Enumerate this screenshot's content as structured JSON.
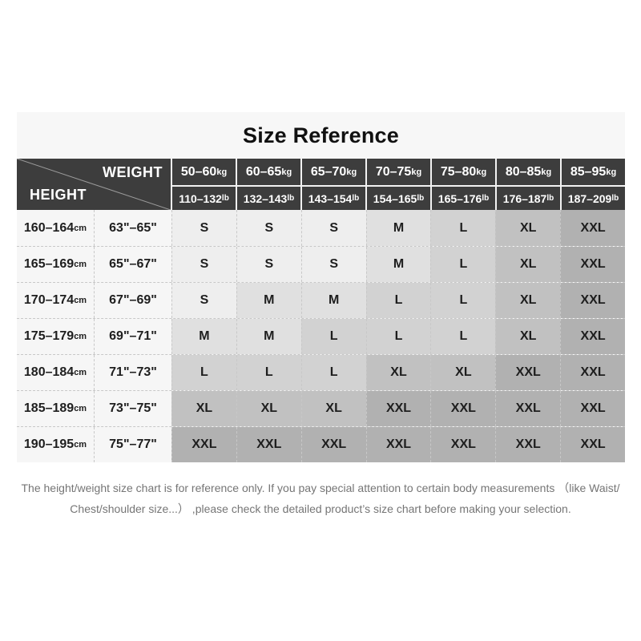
{
  "title": "Size Reference",
  "table": {
    "corner": {
      "weight_label": "WEIGHT",
      "height_label": "HEIGHT"
    },
    "units": {
      "kg": "kg",
      "lb": "lb",
      "cm": "cm"
    },
    "weight_columns": [
      {
        "kg": "50–60",
        "lb": "110–132"
      },
      {
        "kg": "60–65",
        "lb": "132–143"
      },
      {
        "kg": "65–70",
        "lb": "143–154"
      },
      {
        "kg": "70–75",
        "lb": "154–165"
      },
      {
        "kg": "75–80",
        "lb": "165–176"
      },
      {
        "kg": "80–85",
        "lb": "176–187"
      },
      {
        "kg": "85–95",
        "lb": "187–209"
      }
    ],
    "rows": [
      {
        "cm": "160–164",
        "inch": "63\"–65\"",
        "sizes": [
          "S",
          "S",
          "S",
          "M",
          "L",
          "XL",
          "XXL"
        ]
      },
      {
        "cm": "165–169",
        "inch": "65\"–67\"",
        "sizes": [
          "S",
          "S",
          "S",
          "M",
          "L",
          "XL",
          "XXL"
        ]
      },
      {
        "cm": "170–174",
        "inch": "67\"–69\"",
        "sizes": [
          "S",
          "M",
          "M",
          "L",
          "L",
          "XL",
          "XXL"
        ]
      },
      {
        "cm": "175–179",
        "inch": "69\"–71\"",
        "sizes": [
          "M",
          "M",
          "L",
          "L",
          "L",
          "XL",
          "XXL"
        ]
      },
      {
        "cm": "180–184",
        "inch": "71\"–73\"",
        "sizes": [
          "L",
          "L",
          "L",
          "XL",
          "XL",
          "XXL",
          "XXL"
        ]
      },
      {
        "cm": "185–189",
        "inch": "73\"–75\"",
        "sizes": [
          "XL",
          "XL",
          "XL",
          "XXL",
          "XXL",
          "XXL",
          "XXL"
        ]
      },
      {
        "cm": "190–195",
        "inch": "75\"–77\"",
        "sizes": [
          "XXL",
          "XXL",
          "XXL",
          "XXL",
          "XXL",
          "XXL",
          "XXL"
        ]
      }
    ]
  },
  "footer": {
    "line1": "The height/weight size chart is for reference only. If you pay special attention to certain body measurements （like Waist/",
    "line2": "Chest/shoulder size...） ,please check the detailed product’s size chart before making your selection."
  },
  "colors": {
    "header_bg": "#3d3d3d",
    "header_text": "#ffffff",
    "panel_bg": "#f7f7f7",
    "label_cell_bg": "#f6f6f6",
    "grid_dash": "#c8c8c8",
    "body_text": "#1e1e1e",
    "footer_text": "#757575",
    "size_shades": {
      "S": "#eeeeee",
      "M": "#e0e0e0",
      "L": "#d2d2d2",
      "XL": "#c1c1c1",
      "XXL": "#b1b1b1"
    }
  }
}
